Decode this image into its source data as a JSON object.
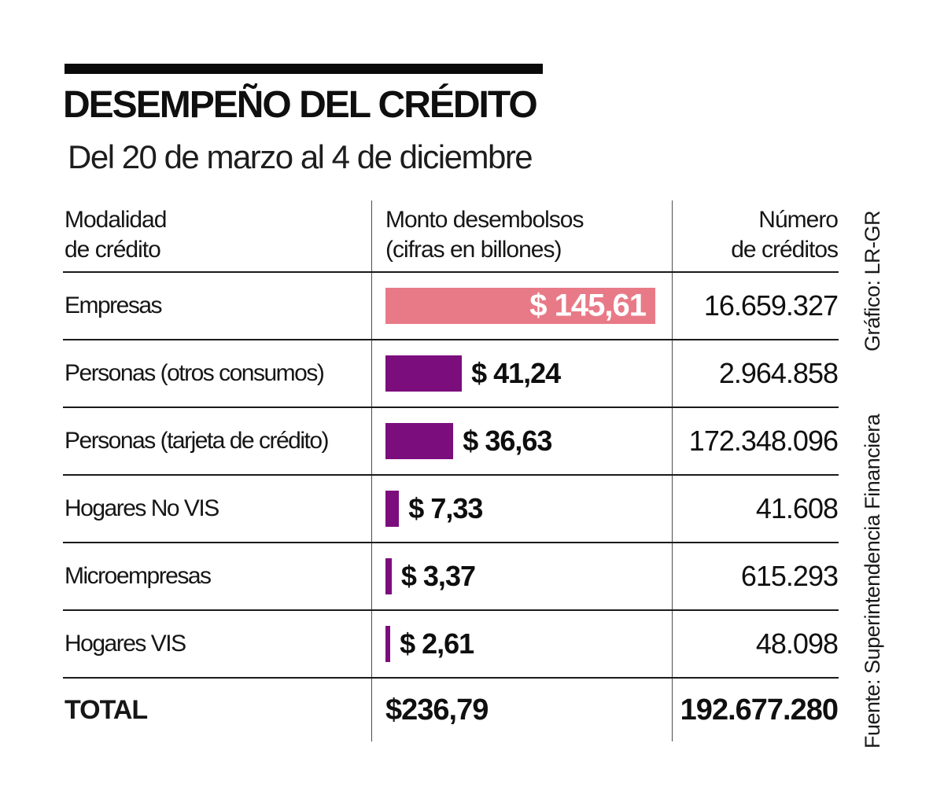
{
  "page": {
    "title": "DESEMPEÑO DEL CRÉDITO",
    "subtitle": "Del 20 de marzo al 4 de diciembre"
  },
  "table": {
    "headers": {
      "col1": "Modalidad\nde crédito",
      "col2": "Monto desembolsos\n(cifras en billones)",
      "col3": "Número\nde créditos"
    },
    "rows": [
      {
        "label": "Empresas",
        "monto": "$ 145,61",
        "creditos": "16.659.327",
        "value": 145.61
      },
      {
        "label": "Personas (otros consumos)",
        "monto": "$ 41,24",
        "creditos": "2.964.858",
        "value": 41.24
      },
      {
        "label": "Personas (tarjeta de crédito)",
        "monto": "$ 36,63",
        "creditos": "172.348.096",
        "value": 36.63
      },
      {
        "label": "Hogares No VIS",
        "monto": "$ 7,33",
        "creditos": "41.608",
        "value": 7.33
      },
      {
        "label": "Microempresas",
        "monto": "$ 3,37",
        "creditos": "615.293",
        "value": 3.37
      },
      {
        "label": "Hogares VIS",
        "monto": "$ 2,61",
        "creditos": "48.098",
        "value": 2.61
      }
    ],
    "total": {
      "label": "TOTAL",
      "monto": "$236,79",
      "creditos": "192.677.280"
    }
  },
  "credits": {
    "grafico": "Gráfico: LR-GR",
    "fuente": "Fuente: Superintendencia Financiera"
  },
  "colors": {
    "bar_highlight_pink": "#e87a87",
    "bar_purple": "#7c0d7d",
    "text": "#141414",
    "rule": "#0a0a0a"
  },
  "chart_data": {
    "type": "bar",
    "orientation": "horizontal",
    "title": "DESEMPEÑO DEL CRÉDITO",
    "subtitle": "Del 20 de marzo al 4 de diciembre",
    "categories": [
      "Empresas",
      "Personas (otros consumos)",
      "Personas (tarjeta de crédito)",
      "Hogares No VIS",
      "Microempresas",
      "Hogares VIS"
    ],
    "series": [
      {
        "name": "Monto desembolsos (cifras en billones)",
        "values": [
          145.61,
          41.24,
          36.63,
          7.33,
          3.37,
          2.61
        ]
      },
      {
        "name": "Número de créditos",
        "values": [
          16659327,
          2964858,
          172348096,
          41608,
          615293,
          48098
        ]
      }
    ],
    "totals": {
      "monto_billones": 236.79,
      "numero_creditos": 192677280
    },
    "xlabel": "",
    "ylabel": "",
    "xlim": [
      0,
      145.61
    ],
    "grid": false,
    "legend": false,
    "bar_colors": [
      "#e87a87",
      "#7c0d7d",
      "#7c0d7d",
      "#7c0d7d",
      "#7c0d7d",
      "#7c0d7d"
    ],
    "value_labels": [
      "$ 145,61",
      "$ 41,24",
      "$ 36,63",
      "$ 7,33",
      "$ 3,37",
      "$ 2,61"
    ]
  }
}
